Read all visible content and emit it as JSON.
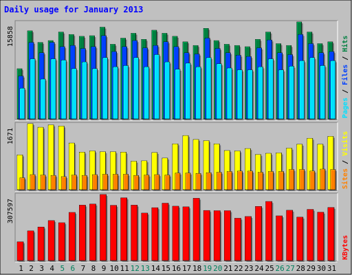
{
  "chart_data": {
    "type": "bar",
    "title": "Daily usage for January 2013",
    "categories": [
      "1",
      "2",
      "3",
      "4",
      "5",
      "6",
      "7",
      "8",
      "9",
      "10",
      "11",
      "12",
      "13",
      "14",
      "15",
      "16",
      "17",
      "18",
      "19",
      "20",
      "21",
      "22",
      "23",
      "24",
      "25",
      "26",
      "27",
      "28",
      "29",
      "30",
      "31"
    ],
    "weekend_days": [
      "5",
      "6",
      "12",
      "13",
      "19",
      "20",
      "26",
      "27"
    ],
    "panels": [
      {
        "name": "hits-files-pages",
        "ytick": "15858",
        "ymax": 15858,
        "axis_label": [
          "Pages",
          "Files",
          "Hits"
        ],
        "series": [
          {
            "name": "Hits",
            "color": "#008040",
            "values": [
              8200,
              14400,
              12500,
              12800,
              14200,
              13800,
              13500,
              13600,
              15000,
              12200,
              13200,
              14000,
              13000,
              14500,
              14000,
              13500,
              12600,
              12000,
              14800,
              12800,
              12200,
              12000,
              11800,
              13000,
              14200,
              12300,
              12000,
              15858,
              14200,
              12300,
              12600
            ]
          },
          {
            "name": "Files",
            "color": "#0040ff",
            "values": [
              7000,
              12500,
              10800,
              12500,
              11800,
              12000,
              11500,
              11800,
              13600,
              11000,
              11800,
              12800,
              11600,
              12000,
              12600,
              11800,
              10800,
              10600,
              13200,
              11500,
              10800,
              10400,
              10200,
              11600,
              12900,
              10800,
              10500,
              13800,
              12300,
              10800,
              11000
            ]
          },
          {
            "name": "Pages",
            "color": "#00e0ff",
            "values": [
              5000,
              9800,
              6500,
              9800,
              9600,
              8200,
              9300,
              8200,
              10000,
              8500,
              8700,
              10000,
              8500,
              10500,
              9300,
              8100,
              9100,
              8500,
              10000,
              9000,
              8300,
              8000,
              8000,
              8500,
              9800,
              8000,
              8600,
              9500,
              10000,
              8700,
              9500
            ]
          }
        ]
      },
      {
        "name": "visits-sites",
        "ytick": "1671",
        "ymax": 1671,
        "axis_label": [
          "Sites",
          "Visits"
        ],
        "series": [
          {
            "name": "Visits",
            "color": "#ffff00",
            "values": [
              880,
              1671,
              1580,
              1640,
              1610,
              1180,
              950,
              980,
              960,
              960,
              950,
              720,
              730,
              940,
              800,
              1160,
              1370,
              1270,
              1240,
              1160,
              990,
              980,
              1040,
              890,
              920,
              930,
              1050,
              1150,
              1300,
              1150,
              1350
            ]
          },
          {
            "name": "Sites",
            "color": "#ff8000",
            "values": [
              300,
              380,
              370,
              360,
              330,
              370,
              360,
              380,
              390,
              390,
              390,
              360,
              370,
              380,
              370,
              420,
              420,
              410,
              430,
              440,
              460,
              470,
              470,
              440,
              460,
              460,
              510,
              510,
              470,
              520,
              510
            ]
          }
        ]
      },
      {
        "name": "kbytes",
        "ytick": "307597",
        "ymax": 307597,
        "axis_label": [
          "KBytes"
        ],
        "series": [
          {
            "name": "KBytes",
            "color": "#ff0000",
            "values": [
              87000,
              138000,
              156000,
              186000,
              176000,
              224000,
              258000,
              263000,
              307597,
              257000,
              292000,
              258000,
              221000,
              246000,
              267000,
              253000,
              250000,
              290000,
              233000,
              232000,
              232000,
              197000,
              205000,
              252000,
              275000,
              208000,
              234000,
              202000,
              238000,
              225000,
              247000
            ]
          }
        ]
      }
    ]
  },
  "colors": {
    "background": "#c0c0c0",
    "title_color": "#0000ff",
    "weekday_label": "#000000",
    "weekend_label": "#00805c"
  }
}
